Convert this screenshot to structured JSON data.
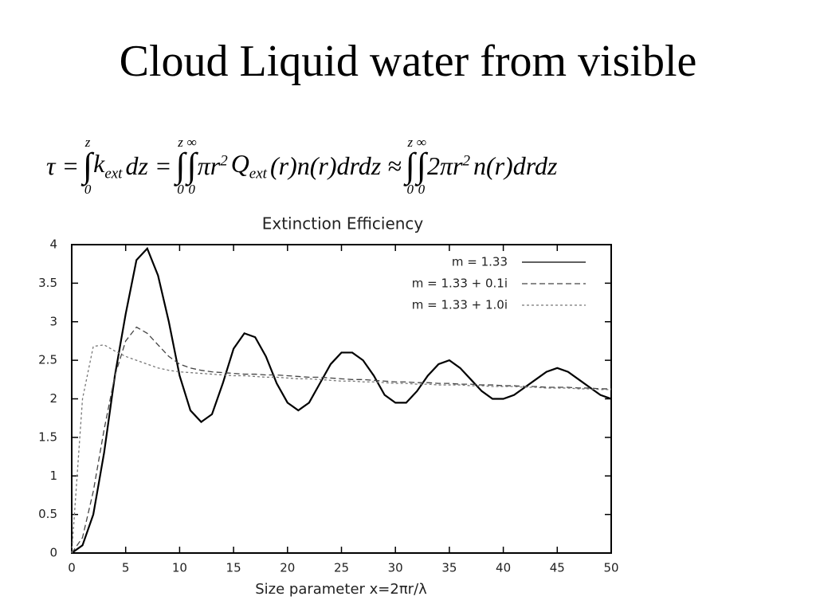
{
  "slide": {
    "title": "Cloud Liquid water from visible"
  },
  "equation": {
    "terms": [
      {
        "text": "τ ="
      },
      {
        "integral": {
          "symbol": "∫",
          "upper": "z",
          "lower": "0"
        }
      },
      {
        "text": "k",
        "sub": "ext"
      },
      {
        "text": "dz ="
      },
      {
        "integral": {
          "symbol": "∫",
          "upper": "z",
          "lower": "0"
        }
      },
      {
        "integral": {
          "symbol": "∫",
          "upper": "∞",
          "lower": "0"
        }
      },
      {
        "text": "πr",
        "sup": "2"
      },
      {
        "text": "Q",
        "sub": "ext"
      },
      {
        "text": "(r)n(r)drdz ≈"
      },
      {
        "integral": {
          "symbol": "∫",
          "upper": "z",
          "lower": "0"
        }
      },
      {
        "integral": {
          "symbol": "∫",
          "upper": "∞",
          "lower": "0"
        }
      },
      {
        "text": "2πr",
        "sup": "2"
      },
      {
        "text": "n(r)drdz"
      }
    ]
  },
  "chart_data": {
    "type": "line",
    "title": "Extinction Efficiency",
    "x_label": "Size parameter x=2πr/λ",
    "x": [
      0,
      1,
      2,
      3,
      4,
      5,
      6,
      7,
      8,
      9,
      10,
      11,
      12,
      13,
      14,
      15,
      16,
      17,
      18,
      19,
      20,
      21,
      22,
      23,
      24,
      25,
      26,
      27,
      28,
      29,
      30,
      31,
      32,
      33,
      34,
      35,
      36,
      37,
      38,
      39,
      40,
      41,
      42,
      43,
      44,
      45,
      46,
      47,
      48,
      49,
      50
    ],
    "series": [
      {
        "name": "m = 1.33",
        "color": "#000000",
        "dash": "solid",
        "values": [
          0,
          0.1,
          0.5,
          1.3,
          2.3,
          3.1,
          3.8,
          3.95,
          3.6,
          3.0,
          2.3,
          1.85,
          1.7,
          1.8,
          2.2,
          2.65,
          2.85,
          2.8,
          2.55,
          2.2,
          1.95,
          1.85,
          1.95,
          2.2,
          2.45,
          2.6,
          2.6,
          2.5,
          2.3,
          2.05,
          1.95,
          1.95,
          2.1,
          2.3,
          2.45,
          2.5,
          2.4,
          2.25,
          2.1,
          2.0,
          2.0,
          2.05,
          2.15,
          2.25,
          2.35,
          2.4,
          2.35,
          2.25,
          2.15,
          2.05,
          2.0
        ]
      },
      {
        "name": "m = 1.33 + 0.1i",
        "color": "#444444",
        "dash": "dashed",
        "values": [
          0,
          0.2,
          0.8,
          1.6,
          2.3,
          2.75,
          2.93,
          2.85,
          2.7,
          2.55,
          2.45,
          2.4,
          2.37,
          2.35,
          2.34,
          2.33,
          2.32,
          2.32,
          2.31,
          2.31,
          2.3,
          2.29,
          2.28,
          2.28,
          2.27,
          2.26,
          2.25,
          2.25,
          2.24,
          2.23,
          2.22,
          2.22,
          2.21,
          2.21,
          2.2,
          2.2,
          2.19,
          2.19,
          2.18,
          2.18,
          2.17,
          2.17,
          2.16,
          2.16,
          2.15,
          2.15,
          2.15,
          2.14,
          2.14,
          2.13,
          2.13
        ]
      },
      {
        "name": "m = 1.33 + 1.0i",
        "color": "#777777",
        "dash": "dotted",
        "values": [
          0,
          2.0,
          2.68,
          2.7,
          2.62,
          2.55,
          2.5,
          2.45,
          2.4,
          2.37,
          2.35,
          2.34,
          2.33,
          2.32,
          2.31,
          2.3,
          2.3,
          2.29,
          2.28,
          2.28,
          2.27,
          2.26,
          2.26,
          2.25,
          2.24,
          2.23,
          2.23,
          2.22,
          2.22,
          2.21,
          2.2,
          2.2,
          2.19,
          2.19,
          2.18,
          2.18,
          2.18,
          2.17,
          2.17,
          2.16,
          2.16,
          2.16,
          2.15,
          2.15,
          2.14,
          2.14,
          2.14,
          2.13,
          2.13,
          2.12,
          2.12
        ]
      }
    ],
    "xlim": [
      0,
      50
    ],
    "xticks": [
      0,
      5,
      10,
      15,
      20,
      25,
      30,
      35,
      40,
      45,
      50
    ],
    "ylim": [
      0,
      4
    ],
    "yticks": [
      0,
      0.5,
      1,
      1.5,
      2,
      2.5,
      3,
      3.5,
      4
    ],
    "legend": "upper right",
    "grid": false
  }
}
